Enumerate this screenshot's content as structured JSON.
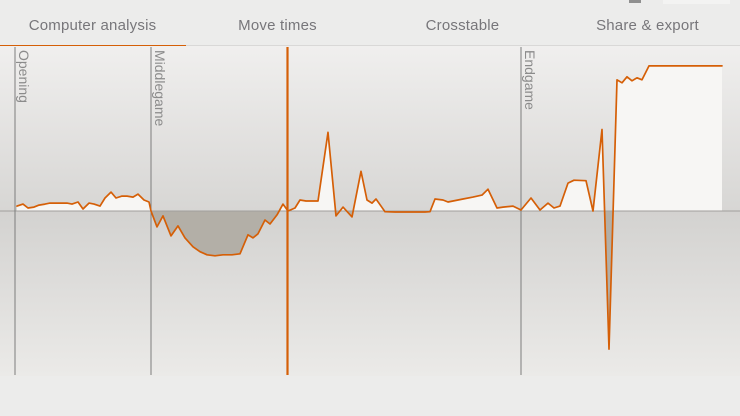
{
  "header": {
    "tabs": [
      {
        "label": "Computer analysis",
        "active": true
      },
      {
        "label": "Move times",
        "active": false
      },
      {
        "label": "Crosstable",
        "active": false
      },
      {
        "label": "Share & export",
        "active": false
      }
    ]
  },
  "chart_data": {
    "type": "area",
    "description": "Chess game advantage-by-move chart (white advantage up, black advantage down)",
    "x_unit": "move (pixel x position)",
    "ylim": [
      -1,
      1
    ],
    "grid": false,
    "legend": false,
    "phases": [
      {
        "label": "Opening",
        "x": 15
      },
      {
        "label": "Middlegame",
        "x": 151
      },
      {
        "label": "Endgame",
        "x": 521
      }
    ],
    "cursor_x": 287.5,
    "points": [
      [
        17,
        0.03
      ],
      [
        23,
        0.042
      ],
      [
        28,
        0.018
      ],
      [
        34,
        0.024
      ],
      [
        39,
        0.036
      ],
      [
        45,
        0.042
      ],
      [
        50,
        0.048
      ],
      [
        56,
        0.048
      ],
      [
        61,
        0.048
      ],
      [
        67,
        0.048
      ],
      [
        72,
        0.042
      ],
      [
        78,
        0.055
      ],
      [
        83,
        0.012
      ],
      [
        89,
        0.048
      ],
      [
        94,
        0.042
      ],
      [
        100,
        0.03
      ],
      [
        105,
        0.079
      ],
      [
        111,
        0.115
      ],
      [
        116,
        0.079
      ],
      [
        122,
        0.091
      ],
      [
        127,
        0.091
      ],
      [
        133,
        0.085
      ],
      [
        138,
        0.103
      ],
      [
        144,
        0.067
      ],
      [
        149,
        0.055
      ],
      [
        151,
        0.0
      ],
      [
        157,
        -0.097
      ],
      [
        163,
        -0.03
      ],
      [
        171,
        -0.152
      ],
      [
        178,
        -0.091
      ],
      [
        185,
        -0.164
      ],
      [
        193,
        -0.218
      ],
      [
        200,
        -0.248
      ],
      [
        207,
        -0.267
      ],
      [
        215,
        -0.273
      ],
      [
        223,
        -0.267
      ],
      [
        232,
        -0.267
      ],
      [
        240,
        -0.261
      ],
      [
        248,
        -0.145
      ],
      [
        253,
        -0.164
      ],
      [
        258,
        -0.139
      ],
      [
        265,
        -0.055
      ],
      [
        270,
        -0.079
      ],
      [
        277,
        -0.024
      ],
      [
        283,
        0.042
      ],
      [
        288,
        0.0
      ],
      [
        295,
        0.018
      ],
      [
        300,
        0.067
      ],
      [
        306,
        0.061
      ],
      [
        312,
        0.061
      ],
      [
        318,
        0.061
      ],
      [
        328,
        0.479
      ],
      [
        336,
        -0.03
      ],
      [
        343,
        0.024
      ],
      [
        352,
        -0.036
      ],
      [
        361,
        0.242
      ],
      [
        367,
        0.067
      ],
      [
        372,
        0.048
      ],
      [
        376,
        0.073
      ],
      [
        385,
        -0.004
      ],
      [
        395,
        -0.006
      ],
      [
        405,
        -0.006
      ],
      [
        415,
        -0.006
      ],
      [
        425,
        -0.006
      ],
      [
        430,
        -0.004
      ],
      [
        435,
        0.073
      ],
      [
        443,
        0.067
      ],
      [
        448,
        0.055
      ],
      [
        453,
        0.061
      ],
      [
        463,
        0.073
      ],
      [
        473,
        0.085
      ],
      [
        482,
        0.097
      ],
      [
        488,
        0.133
      ],
      [
        497,
        0.018
      ],
      [
        503,
        0.024
      ],
      [
        513,
        0.03
      ],
      [
        521,
        0.006
      ],
      [
        531,
        0.079
      ],
      [
        540,
        0.006
      ],
      [
        548,
        0.048
      ],
      [
        554,
        0.018
      ],
      [
        560,
        0.03
      ],
      [
        568,
        0.17
      ],
      [
        574,
        0.188
      ],
      [
        586,
        0.185
      ],
      [
        593,
        0.0
      ],
      [
        602,
        0.497
      ],
      [
        609,
        -0.842
      ],
      [
        617,
        0.8
      ],
      [
        622,
        0.782
      ],
      [
        627,
        0.818
      ],
      [
        632,
        0.794
      ],
      [
        637,
        0.812
      ],
      [
        642,
        0.8
      ],
      [
        649,
        0.885
      ],
      [
        660,
        0.885
      ],
      [
        680,
        0.885
      ],
      [
        700,
        0.885
      ],
      [
        722,
        0.885
      ]
    ],
    "colors": {
      "line": "#d55f07",
      "cursor": "#d55f07",
      "white_advantage_fill": "#f7f6f4",
      "black_advantage_fill": "#b3afa7",
      "midline": "#a19f9c",
      "phase_line": "#7d7d7d",
      "phase_label": "#8b8b8b",
      "bg_top_start": "#f0efee",
      "bg_top_end": "#d7d6d4",
      "bg_bottom_start": "#d3d2d0",
      "bg_bottom_end": "#ebeae8"
    }
  }
}
